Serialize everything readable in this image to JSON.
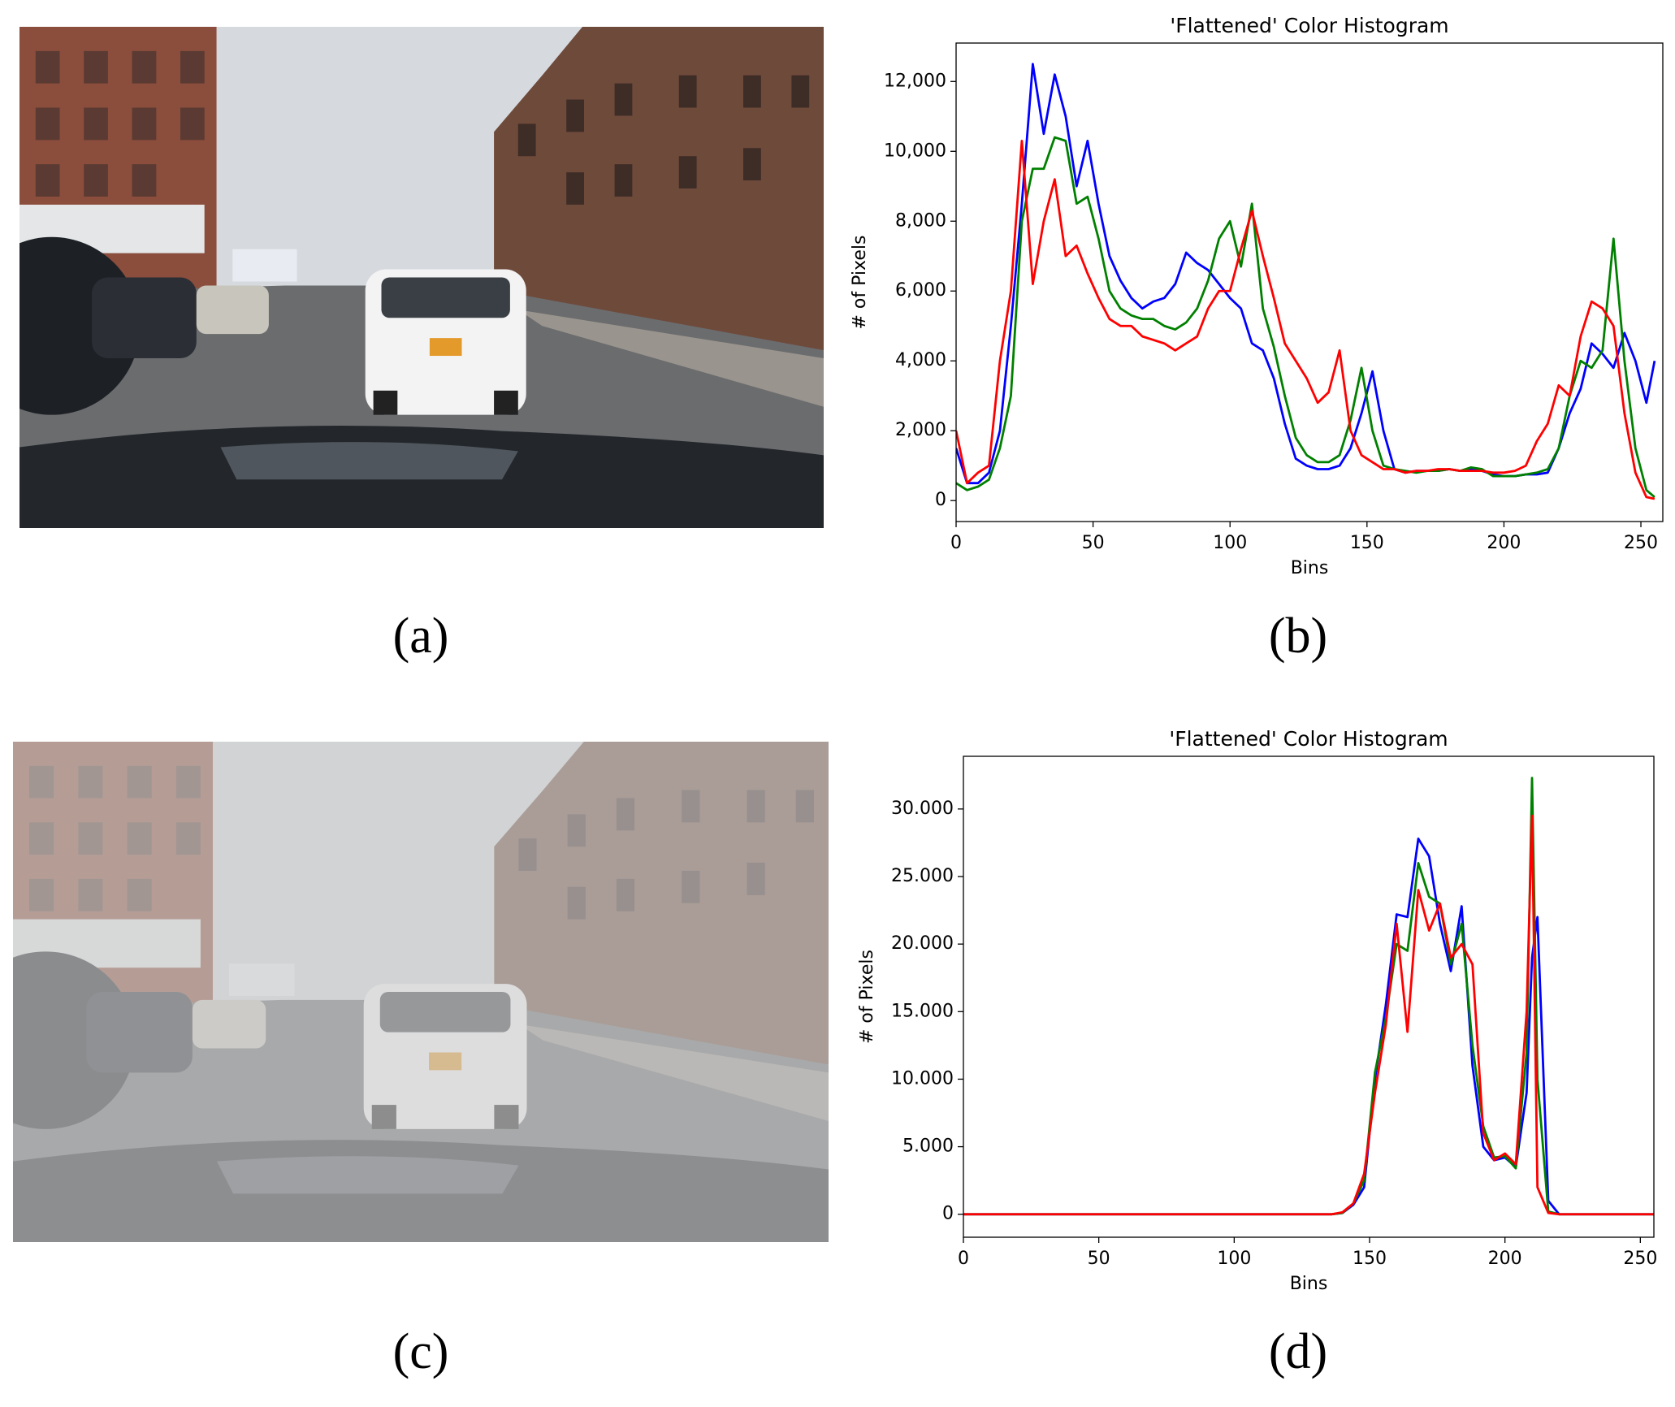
{
  "figure": {
    "captions": [
      "(a)",
      "(b)",
      "(c)",
      "(d)"
    ]
  },
  "chart_data": [
    {
      "type": "line",
      "title": "'Flattened' Color Histogram",
      "xlabel": "Bins",
      "ylabel": "# of Pixels",
      "x": [
        0,
        4,
        8,
        12,
        16,
        20,
        24,
        28,
        32,
        36,
        40,
        44,
        48,
        52,
        56,
        60,
        64,
        68,
        72,
        76,
        80,
        84,
        88,
        92,
        96,
        100,
        104,
        108,
        112,
        116,
        120,
        124,
        128,
        132,
        136,
        140,
        144,
        148,
        152,
        156,
        160,
        164,
        168,
        172,
        176,
        180,
        184,
        188,
        192,
        196,
        200,
        204,
        208,
        212,
        216,
        220,
        224,
        228,
        232,
        236,
        240,
        244,
        248,
        252,
        255
      ],
      "series": [
        {
          "color": "#0000ff",
          "values": [
            1500,
            500,
            500,
            800,
            2000,
            5000,
            8500,
            12500,
            10500,
            12200,
            11000,
            9000,
            10300,
            8500,
            7000,
            6300,
            5800,
            5500,
            5700,
            5800,
            6200,
            7100,
            6800,
            6600,
            6200,
            5800,
            5500,
            4500,
            4300,
            3500,
            2200,
            1200,
            1000,
            900,
            900,
            1000,
            1500,
            2500,
            3700,
            2000,
            900,
            800,
            850,
            850,
            850,
            900,
            850,
            900,
            850,
            750,
            700,
            700,
            750,
            750,
            800,
            1500,
            2500,
            3200,
            4500,
            4200,
            3800,
            4800,
            4000,
            2800,
            4000
          ]
        },
        {
          "color": "#008000",
          "values": [
            500,
            300,
            400,
            600,
            1500,
            3000,
            8000,
            9500,
            9500,
            10400,
            10300,
            8500,
            8700,
            7500,
            6000,
            5500,
            5300,
            5200,
            5200,
            5000,
            4900,
            5100,
            5500,
            6300,
            7500,
            8000,
            6700,
            8500,
            5500,
            4400,
            3000,
            1800,
            1300,
            1100,
            1100,
            1300,
            2300,
            3800,
            2000,
            1000,
            900,
            850,
            800,
            850,
            850,
            900,
            850,
            950,
            900,
            700,
            700,
            700,
            750,
            800,
            900,
            1500,
            3000,
            4000,
            3800,
            4300,
            7500,
            4000,
            1500,
            300,
            100
          ]
        },
        {
          "color": "#ff0000",
          "values": [
            2000,
            500,
            800,
            1000,
            4000,
            6000,
            10300,
            6200,
            8000,
            9200,
            7000,
            7300,
            6500,
            5800,
            5200,
            5000,
            5000,
            4700,
            4600,
            4500,
            4300,
            4500,
            4700,
            5500,
            6000,
            6000,
            7200,
            8300,
            7000,
            5800,
            4500,
            4000,
            3500,
            2800,
            3100,
            4300,
            2000,
            1300,
            1100,
            900,
            900,
            800,
            850,
            850,
            900,
            900,
            850,
            850,
            850,
            800,
            800,
            850,
            1000,
            1700,
            2200,
            3300,
            3000,
            4700,
            5700,
            5500,
            5000,
            2500,
            800,
            100,
            50
          ]
        }
      ],
      "xlim": [
        0,
        258
      ],
      "ylim": [
        -600,
        13100
      ],
      "xticks": [
        0,
        50,
        100,
        150,
        200,
        250
      ],
      "yticks": [
        0,
        {
          "value": 2000,
          "label": "2,000"
        },
        {
          "value": 4000,
          "label": "4,000"
        },
        {
          "value": 6000,
          "label": "6,000"
        },
        {
          "value": 8000,
          "label": "8,000"
        },
        {
          "value": 10000,
          "label": "10,000"
        },
        {
          "value": 12000,
          "label": "12,000"
        }
      ],
      "grid": false
    },
    {
      "type": "line",
      "title": "'Flattened' Color Histogram",
      "xlabel": "Bins",
      "ylabel": "# of Pixels",
      "x": [
        0,
        4,
        8,
        12,
        16,
        20,
        24,
        28,
        32,
        36,
        40,
        44,
        48,
        52,
        56,
        60,
        64,
        68,
        72,
        76,
        80,
        84,
        88,
        92,
        96,
        100,
        104,
        108,
        112,
        116,
        120,
        124,
        128,
        132,
        136,
        140,
        144,
        148,
        152,
        156,
        160,
        164,
        168,
        172,
        176,
        180,
        184,
        188,
        192,
        196,
        200,
        204,
        208,
        210,
        212,
        216,
        220,
        224,
        228,
        232,
        236,
        240,
        244,
        248,
        252,
        255
      ],
      "series": [
        {
          "color": "#0000ff",
          "values": [
            0,
            0,
            0,
            0,
            0,
            0,
            0,
            0,
            0,
            0,
            0,
            0,
            0,
            0,
            0,
            0,
            0,
            0,
            0,
            0,
            0,
            0,
            0,
            0,
            0,
            0,
            0,
            0,
            0,
            0,
            0,
            0,
            0,
            0,
            0,
            100,
            700,
            2000,
            10000,
            15500,
            22200,
            22000,
            27800,
            26500,
            21500,
            18000,
            22800,
            11000,
            5000,
            4000,
            4200,
            3500,
            9000,
            19000,
            22000,
            1000,
            0,
            0,
            0,
            0,
            0,
            0,
            0,
            0,
            0,
            0
          ]
        },
        {
          "color": "#008000",
          "values": [
            0,
            0,
            0,
            0,
            0,
            0,
            0,
            0,
            0,
            0,
            0,
            0,
            0,
            0,
            0,
            0,
            0,
            0,
            0,
            0,
            0,
            0,
            0,
            0,
            0,
            0,
            0,
            0,
            0,
            0,
            0,
            0,
            0,
            0,
            0,
            100,
            800,
            2500,
            10500,
            14500,
            20000,
            19500,
            26000,
            23500,
            23000,
            18500,
            21500,
            12500,
            6500,
            4200,
            4300,
            3400,
            12000,
            32300,
            10000,
            200,
            0,
            0,
            0,
            0,
            0,
            0,
            0,
            0,
            0,
            0
          ]
        },
        {
          "color": "#ff0000",
          "values": [
            0,
            0,
            0,
            0,
            0,
            0,
            0,
            0,
            0,
            0,
            0,
            0,
            0,
            0,
            0,
            0,
            0,
            0,
            0,
            0,
            0,
            0,
            0,
            0,
            0,
            0,
            0,
            0,
            0,
            0,
            0,
            0,
            0,
            0,
            0,
            150,
            800,
            3000,
            9000,
            14000,
            21500,
            13500,
            24000,
            21000,
            23000,
            19000,
            20000,
            18500,
            6000,
            4000,
            4500,
            3700,
            15000,
            29500,
            2000,
            100,
            0,
            0,
            0,
            0,
            0,
            0,
            0,
            0,
            0,
            0
          ]
        }
      ],
      "xlim": [
        0,
        255
      ],
      "ylim": [
        -1700,
        33900
      ],
      "xticks": [
        0,
        50,
        100,
        150,
        200,
        250
      ],
      "yticks": [
        0,
        {
          "value": 5000,
          "label": "5.000"
        },
        {
          "value": 10000,
          "label": "10.000"
        },
        {
          "value": 15000,
          "label": "15.000"
        },
        {
          "value": 20000,
          "label": "20.000"
        },
        {
          "value": 25000,
          "label": "25.000"
        },
        {
          "value": 30000,
          "label": "30.000"
        }
      ],
      "grid": false
    }
  ]
}
